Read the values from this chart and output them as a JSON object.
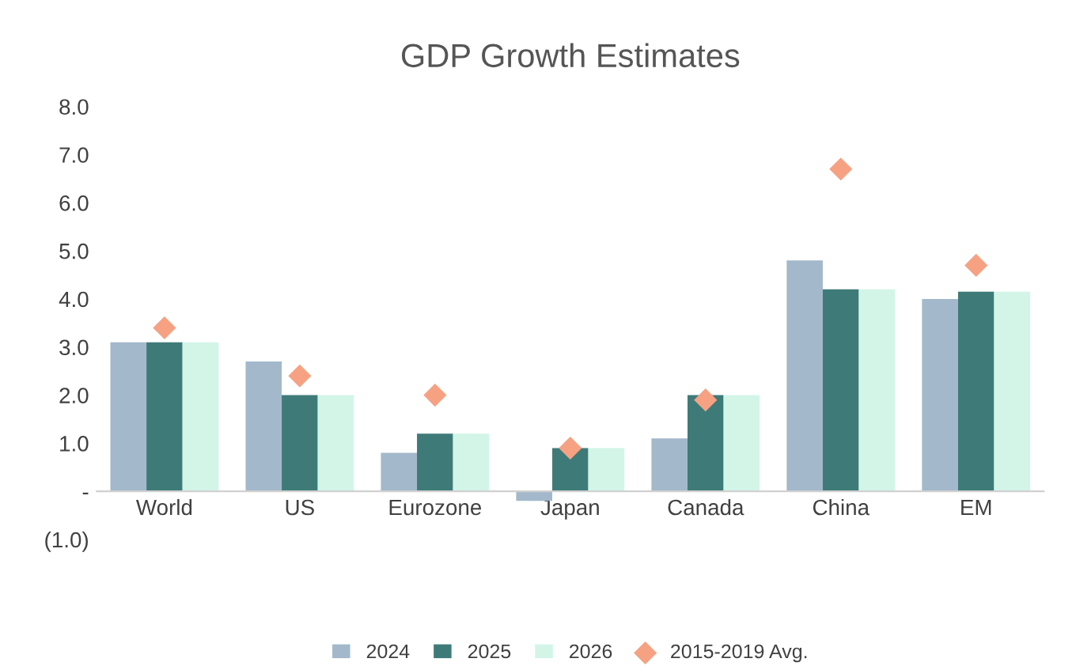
{
  "chart_data": {
    "type": "bar",
    "title": "GDP Growth Estimates",
    "categories": [
      "World",
      "US",
      "Eurozone",
      "Japan",
      "Canada",
      "China",
      "EM"
    ],
    "series": [
      {
        "name": "2024",
        "color": "#a3b8cb",
        "values": [
          3.1,
          2.7,
          0.8,
          -0.2,
          1.1,
          4.8,
          4.0
        ]
      },
      {
        "name": "2025",
        "color": "#3e7b78",
        "values": [
          3.1,
          2.0,
          1.2,
          0.9,
          2.0,
          4.2,
          4.15
        ]
      },
      {
        "name": "2026",
        "color": "#d2f5e8",
        "values": [
          3.1,
          2.0,
          1.2,
          0.9,
          2.0,
          4.2,
          4.15
        ]
      },
      {
        "name": "2015-2019 Avg.",
        "type": "scatter",
        "marker": "diamond",
        "color": "#f7a183",
        "x": [
          "World",
          "US",
          "Eurozone",
          "Japan",
          "Canada",
          "China",
          "EM"
        ],
        "values": [
          3.4,
          2.4,
          2.0,
          0.9,
          1.9,
          6.7,
          4.7
        ]
      }
    ],
    "ylim": [
      -1,
      8
    ],
    "yticks": [
      {
        "value": -1,
        "label": "(1.0)"
      },
      {
        "value": 0,
        "label": "-"
      },
      {
        "value": 1,
        "label": "1.0"
      },
      {
        "value": 2,
        "label": "2.0"
      },
      {
        "value": 3,
        "label": "3.0"
      },
      {
        "value": 4,
        "label": "4.0"
      },
      {
        "value": 5,
        "label": "5.0"
      },
      {
        "value": 6,
        "label": "6.0"
      },
      {
        "value": 7,
        "label": "7.0"
      },
      {
        "value": 8,
        "label": "8.0"
      }
    ],
    "grid": false,
    "legend": "bottom"
  }
}
